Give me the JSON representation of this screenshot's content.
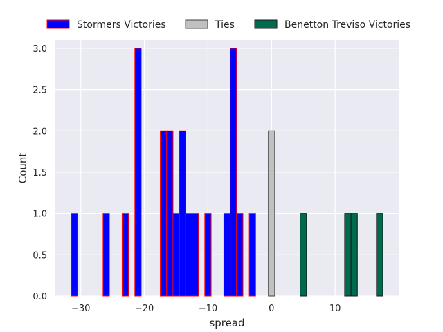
{
  "chart_data": {
    "type": "bar",
    "title": "",
    "xlabel": "spread",
    "ylabel": "Count",
    "xlim": [
      -34,
      20
    ],
    "ylim": [
      0,
      3.1
    ],
    "grid": true,
    "legend_placement": "top",
    "bar_width": 1,
    "x_ticks": [
      -30,
      -20,
      -10,
      0,
      10
    ],
    "x_tick_labels": [
      "−30",
      "−20",
      "−10",
      "0",
      "10"
    ],
    "y_ticks": [
      0.0,
      0.5,
      1.0,
      1.5,
      2.0,
      2.5,
      3.0
    ],
    "y_tick_labels": [
      "0.0",
      "0.5",
      "1.0",
      "1.5",
      "2.0",
      "2.5",
      "3.0"
    ],
    "colors": {
      "background": "#eaeaf2",
      "grid": "#ffffff",
      "stormers_fill": "#0000ff",
      "stormers_edge": "#ff0000",
      "ties_fill": "#c0c0c0",
      "ties_edge": "#404040",
      "benetton_fill": "#006a4e",
      "benetton_edge": "#1a1a1a"
    },
    "series": [
      {
        "name": "Stormers Victories",
        "x": [
          -31,
          -26,
          -23,
          -21,
          -17,
          -16,
          -15,
          -14,
          -13,
          -12,
          -10,
          -7,
          -6,
          -5,
          -3
        ],
        "values": [
          1,
          1,
          1,
          3,
          2,
          2,
          1,
          2,
          1,
          1,
          1,
          1,
          3,
          1,
          1
        ]
      },
      {
        "name": "Ties",
        "x": [
          0
        ],
        "values": [
          2
        ]
      },
      {
        "name": "Benetton Treviso Victories",
        "x": [
          5,
          12,
          13,
          17
        ],
        "values": [
          1,
          1,
          1,
          1
        ]
      }
    ]
  }
}
